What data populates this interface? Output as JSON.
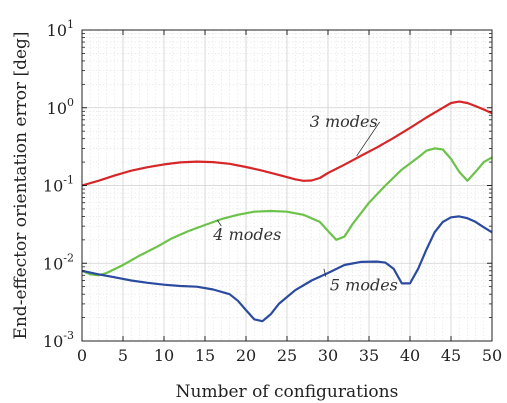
{
  "chart_data": {
    "type": "line",
    "xlabel": "Number of configurations",
    "ylabel": "End-effector orientation error [deg]",
    "xlim": [
      0,
      50
    ],
    "ylim": [
      0.001,
      10
    ],
    "y_scale": "log",
    "grid": true,
    "x_ticks": [
      "0",
      "5",
      "10",
      "15",
      "20",
      "25",
      "30",
      "35",
      "40",
      "45",
      "50"
    ],
    "y_ticks": [
      {
        "base": "10",
        "exp": "-3"
      },
      {
        "base": "10",
        "exp": "-2"
      },
      {
        "base": "10",
        "exp": "-1"
      },
      {
        "base": "10",
        "exp": "0"
      },
      {
        "base": "10",
        "exp": "1"
      }
    ],
    "series": [
      {
        "name": "3 modes",
        "color": "#d62728",
        "points": [
          [
            0,
            0.1
          ],
          [
            2,
            0.115
          ],
          [
            4,
            0.135
          ],
          [
            6,
            0.155
          ],
          [
            8,
            0.172
          ],
          [
            10,
            0.187
          ],
          [
            12,
            0.198
          ],
          [
            14,
            0.203
          ],
          [
            16,
            0.2
          ],
          [
            18,
            0.19
          ],
          [
            20,
            0.173
          ],
          [
            22,
            0.155
          ],
          [
            24,
            0.137
          ],
          [
            26,
            0.12
          ],
          [
            27,
            0.115
          ],
          [
            28,
            0.116
          ],
          [
            29,
            0.125
          ],
          [
            30,
            0.145
          ],
          [
            32,
            0.185
          ],
          [
            34,
            0.24
          ],
          [
            36,
            0.31
          ],
          [
            38,
            0.41
          ],
          [
            40,
            0.55
          ],
          [
            42,
            0.75
          ],
          [
            44,
            1.0
          ],
          [
            45,
            1.15
          ],
          [
            46,
            1.2
          ],
          [
            47,
            1.15
          ],
          [
            48,
            1.05
          ],
          [
            49,
            0.95
          ],
          [
            50,
            0.85
          ]
        ]
      },
      {
        "name": "4 modes",
        "color": "#6cc24a",
        "points": [
          [
            0,
            0.008
          ],
          [
            1,
            0.0072
          ],
          [
            2,
            0.007
          ],
          [
            3,
            0.0075
          ],
          [
            5,
            0.0095
          ],
          [
            7,
            0.0125
          ],
          [
            9,
            0.016
          ],
          [
            11,
            0.021
          ],
          [
            13,
            0.026
          ],
          [
            15,
            0.031
          ],
          [
            17,
            0.037
          ],
          [
            19,
            0.042
          ],
          [
            21,
            0.046
          ],
          [
            23,
            0.047
          ],
          [
            25,
            0.046
          ],
          [
            27,
            0.042
          ],
          [
            29,
            0.034
          ],
          [
            30,
            0.026
          ],
          [
            31,
            0.02
          ],
          [
            32,
            0.022
          ],
          [
            33,
            0.032
          ],
          [
            35,
            0.06
          ],
          [
            37,
            0.1
          ],
          [
            39,
            0.16
          ],
          [
            41,
            0.23
          ],
          [
            42,
            0.28
          ],
          [
            43,
            0.3
          ],
          [
            44,
            0.29
          ],
          [
            45,
            0.22
          ],
          [
            46,
            0.15
          ],
          [
            47,
            0.115
          ],
          [
            48,
            0.15
          ],
          [
            49,
            0.2
          ],
          [
            50,
            0.23
          ]
        ]
      },
      {
        "name": "5 modes",
        "color": "#2b4ba0",
        "points": [
          [
            0,
            0.008
          ],
          [
            2,
            0.0072
          ],
          [
            4,
            0.0066
          ],
          [
            6,
            0.006
          ],
          [
            8,
            0.0056
          ],
          [
            10,
            0.0053
          ],
          [
            12,
            0.0051
          ],
          [
            14,
            0.005
          ],
          [
            16,
            0.0046
          ],
          [
            18,
            0.004
          ],
          [
            19,
            0.0033
          ],
          [
            20,
            0.0025
          ],
          [
            21,
            0.0019
          ],
          [
            22,
            0.0018
          ],
          [
            23,
            0.0022
          ],
          [
            24,
            0.003
          ],
          [
            26,
            0.0045
          ],
          [
            28,
            0.006
          ],
          [
            30,
            0.0075
          ],
          [
            32,
            0.0095
          ],
          [
            34,
            0.0104
          ],
          [
            36,
            0.0105
          ],
          [
            37,
            0.0102
          ],
          [
            38,
            0.0085
          ],
          [
            39,
            0.0055
          ],
          [
            40,
            0.0055
          ],
          [
            41,
            0.0085
          ],
          [
            42,
            0.015
          ],
          [
            43,
            0.025
          ],
          [
            44,
            0.034
          ],
          [
            45,
            0.039
          ],
          [
            46,
            0.04
          ],
          [
            47,
            0.038
          ],
          [
            48,
            0.034
          ],
          [
            49,
            0.029
          ],
          [
            50,
            0.025
          ]
        ]
      }
    ],
    "annotations": [
      {
        "text": "3 modes",
        "series": 0,
        "x": 33.5,
        "y": 0.24
      },
      {
        "text": "4 modes",
        "series": 1,
        "x": 16.5,
        "y": 0.036
      },
      {
        "text": "5 modes",
        "series": 2,
        "x": 29.5,
        "y": 0.0085
      }
    ]
  }
}
